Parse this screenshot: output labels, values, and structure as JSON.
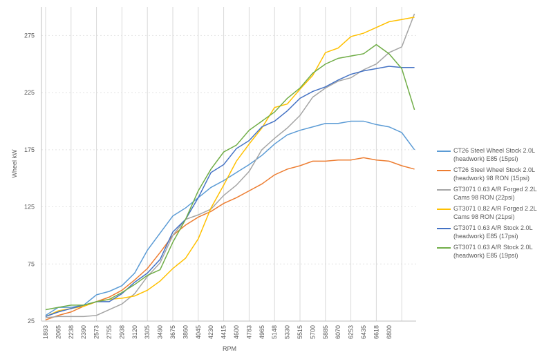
{
  "chart_data": {
    "type": "line",
    "y_label": "Wheel kW",
    "x_label": "RPM",
    "categories": [
      "1893",
      "2065",
      "2238",
      "2390",
      "2573",
      "2755",
      "2938",
      "3120",
      "3305",
      "3490",
      "3675",
      "3860",
      "4045",
      "4230",
      "4415",
      "4600",
      "4783",
      "4965",
      "5148",
      "5330",
      "5515",
      "5700",
      "5885",
      "6070",
      "6253",
      "6435",
      "6618",
      "6800",
      null,
      null
    ],
    "series": [
      {
        "name": "CT26 Steel Wheel Stock 2.0L (headwork) E85 (15psi)",
        "color": "#5b9bd5",
        "values": [
          30,
          37,
          37,
          39,
          48,
          51,
          56,
          67,
          87,
          102,
          117,
          124,
          133,
          142,
          148,
          155,
          162,
          170,
          180,
          188,
          192,
          195,
          198,
          198,
          200,
          200,
          197,
          195,
          190,
          175
        ]
      },
      {
        "name": "CT26 Steel Wheel Stock 2.0L (headwork) 98 RON (15psi)",
        "color": "#ed7d31",
        "values": [
          26,
          30,
          33,
          38,
          42,
          46,
          52,
          61,
          71,
          85,
          100,
          109,
          116,
          121,
          128,
          133,
          139,
          145,
          153,
          158,
          161,
          165,
          165,
          166,
          166,
          168,
          166,
          165,
          161,
          158
        ]
      },
      {
        "name": "GT3071 0.63 A/R Forged 2.2L Cams 98 RON (22psi)",
        "color": "#a5a5a5",
        "values": [
          28,
          29,
          29,
          29,
          30,
          35,
          40,
          49,
          64,
          76,
          100,
          114,
          118,
          123,
          135,
          144,
          156,
          175,
          185,
          194,
          205,
          221,
          229,
          235,
          238,
          245,
          250,
          260,
          265,
          294
        ]
      },
      {
        "name": "GT3071 0.82 A/R Forged 2.2L Cams 98 RON (21psi)",
        "color": "#ffc000",
        "values": [
          29,
          34,
          36,
          38,
          42,
          44,
          45,
          47,
          52,
          60,
          71,
          80,
          97,
          124,
          144,
          165,
          180,
          194,
          212,
          215,
          228,
          240,
          260,
          264,
          274,
          277,
          282,
          287,
          289,
          291
        ]
      },
      {
        "name": "GT3071 0.63 A/R Stock 2.0L (headwork) E85 (17psi)",
        "color": "#4472c4",
        "values": [
          29,
          33,
          36,
          39,
          42,
          42,
          49,
          59,
          67,
          79,
          103,
          114,
          133,
          155,
          162,
          176,
          183,
          195,
          200,
          209,
          220,
          226,
          230,
          236,
          241,
          244,
          246,
          248,
          247,
          247
        ]
      },
      {
        "name": "GT3071 0.63 A/R Stock 2.0L (headwork) E85 (19psi)",
        "color": "#70ad47",
        "values": [
          35,
          37,
          39,
          39,
          42,
          44,
          50,
          57,
          65,
          70,
          94,
          114,
          139,
          158,
          173,
          179,
          192,
          200,
          208,
          220,
          229,
          242,
          250,
          255,
          257,
          259,
          267,
          259,
          246,
          210
        ]
      }
    ],
    "ylim": [
      25,
      300
    ],
    "yticks": [
      25,
      75,
      125,
      175,
      225,
      275
    ],
    "grid": true
  }
}
